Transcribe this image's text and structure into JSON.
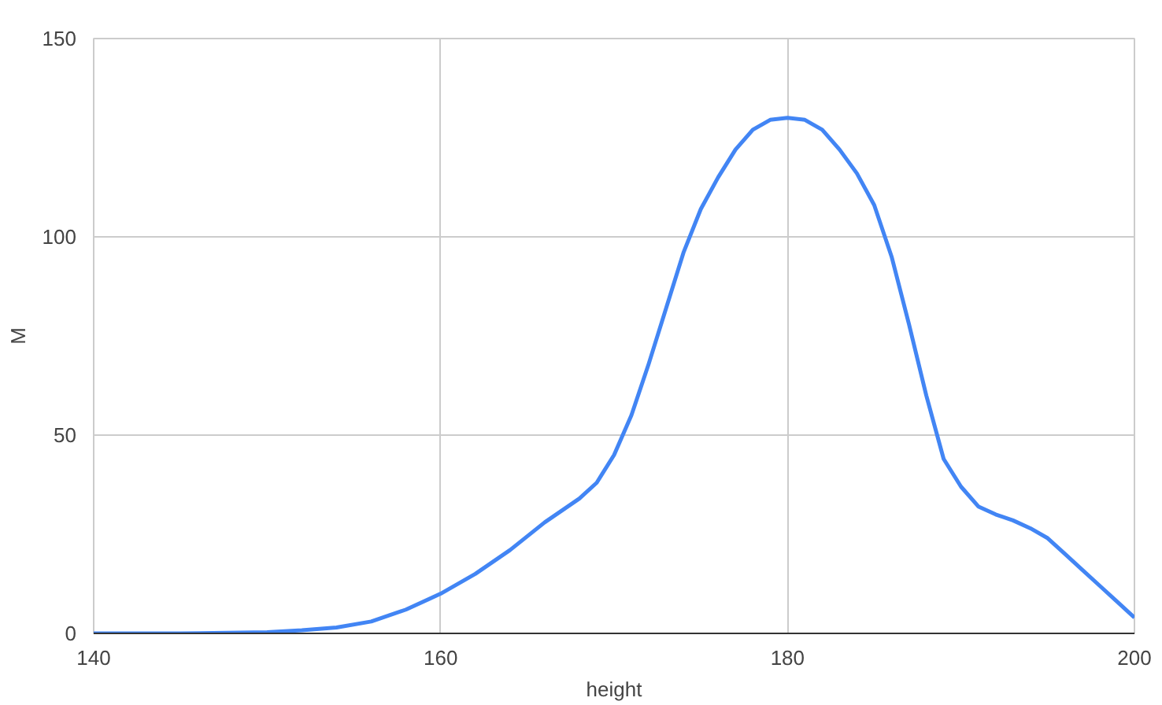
{
  "chart_data": {
    "type": "line",
    "xlabel": "height",
    "ylabel": "M",
    "x": [
      140,
      145,
      150,
      152,
      154,
      156,
      158,
      160,
      162,
      164,
      166,
      168,
      169,
      170,
      171,
      172,
      173,
      174,
      175,
      176,
      177,
      178,
      179,
      180,
      181,
      182,
      183,
      184,
      185,
      186,
      187,
      188,
      189,
      190,
      191,
      192,
      193,
      194,
      195,
      196,
      197,
      198,
      199,
      200
    ],
    "series": [
      {
        "color": "#4285f4",
        "values": [
          0,
          0,
          0.3,
          0.8,
          1.5,
          3,
          6,
          10,
          15,
          21,
          28,
          34,
          38,
          45,
          55,
          68,
          82,
          96,
          107,
          115,
          122,
          127,
          129.5,
          130,
          129.5,
          127,
          122,
          116,
          108,
          95,
          78,
          60,
          44,
          37,
          32,
          30,
          28.5,
          26.5,
          24,
          20,
          16,
          12,
          8,
          4
        ]
      }
    ],
    "xlim": [
      140,
      200
    ],
    "xticks": [
      140,
      160,
      180,
      200
    ],
    "ylim": [
      0,
      150
    ],
    "yticks": [
      0,
      50,
      100,
      150
    ],
    "grid": true,
    "marker": "none",
    "line_style": "solid"
  }
}
